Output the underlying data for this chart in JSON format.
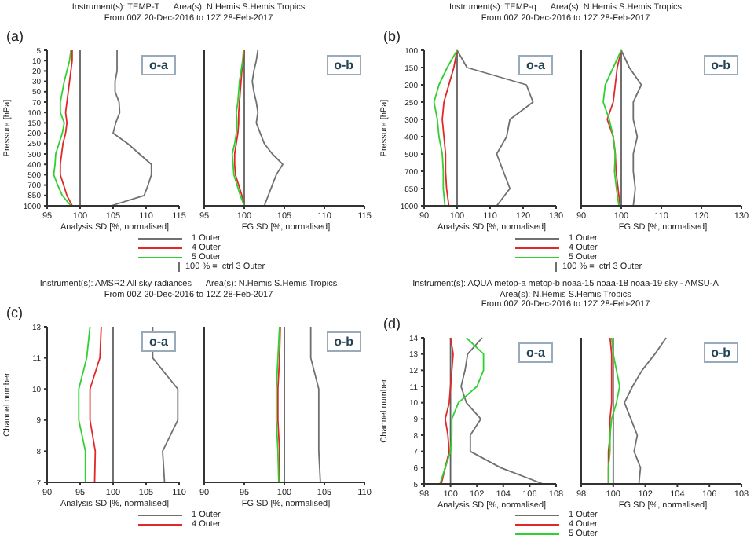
{
  "chart_data": [
    {
      "type": "line",
      "orientation": "horizontal",
      "title": "Instrument(s): TEMP-T      Area(s): N.Hemis S.Hemis Tropics\nFrom 00Z 20-Dec-2016 to 12Z 28-Feb-2017",
      "annotations": [
        "(a)",
        "o-a"
      ],
      "xlabel": "Analysis  SD [%, normalised]",
      "ylabel": "Pressure [hPa]",
      "legend": "bottom",
      "categories": [
        "5",
        "10",
        "20",
        "30",
        "50",
        "70",
        "100",
        "150",
        "200",
        "250",
        "300",
        "400",
        "500",
        "700",
        "850",
        "1000"
      ],
      "xlim": [
        95,
        115
      ],
      "xticks": [
        95,
        100,
        105,
        110,
        115
      ],
      "ref_lines": [
        {
          "axis": "x",
          "value": 100,
          "label": "100 % =  ctrl 3 Outer",
          "color": "#606060"
        }
      ],
      "series": [
        {
          "name": "1 Outer",
          "color": "#707070",
          "values": [
            105.6,
            105.6,
            105.6,
            105.3,
            105.3,
            105.9,
            106,
            105.4,
            105,
            107.2,
            109,
            110.8,
            110.8,
            110.3,
            109.7,
            104.7
          ]
        },
        {
          "name": "4 Outer",
          "color": "#e02828",
          "values": [
            98.8,
            98.8,
            98.6,
            98.4,
            98.2,
            98,
            97.8,
            98,
            97.8,
            97.4,
            97.2,
            97,
            97,
            97.5,
            98,
            98.8
          ]
        },
        {
          "name": "5 Outer",
          "color": "#30d030",
          "values": [
            98.6,
            98.4,
            98,
            97.6,
            97.3,
            97,
            97,
            97.6,
            97.3,
            96.8,
            96.3,
            96.2,
            96,
            96.6,
            97.3,
            98.6
          ]
        }
      ]
    },
    {
      "type": "line",
      "orientation": "horizontal",
      "annotations": [
        "o-b"
      ],
      "xlabel": "FG    SD [%, normalised]",
      "tick_labels": "x",
      "categories": [
        "5",
        "10",
        "20",
        "30",
        "50",
        "70",
        "100",
        "150",
        "200",
        "250",
        "300",
        "400",
        "500",
        "700",
        "850",
        "1000"
      ],
      "xlim": [
        95,
        115
      ],
      "xticks": [
        95,
        100,
        105,
        110,
        115
      ],
      "ref_lines": [
        {
          "axis": "x",
          "value": 100,
          "color": "#606060"
        }
      ],
      "series": [
        {
          "color": "#707070",
          "values": [
            101.7,
            101.5,
            101.2,
            101,
            101.2,
            101.5,
            101.7,
            101.5,
            102,
            102.5,
            103.5,
            104.8,
            104,
            103.5,
            103,
            102.5
          ]
        },
        {
          "color": "#e02828",
          "values": [
            100,
            99.9,
            99.7,
            99.6,
            99.5,
            99.4,
            99.3,
            99.3,
            99.2,
            99,
            98.8,
            98.8,
            98.9,
            99.3,
            99.7,
            100
          ]
        },
        {
          "color": "#30d030",
          "values": [
            99.9,
            99.8,
            99.6,
            99.4,
            99.3,
            99.2,
            99,
            99.1,
            99,
            98.8,
            98.5,
            98.6,
            98.7,
            99.1,
            99.5,
            100
          ]
        }
      ]
    },
    {
      "type": "line",
      "orientation": "horizontal",
      "title": "Instrument(s): TEMP-q      Area(s): N.Hemis S.Hemis Tropics\nFrom 00Z 20-Dec-2016 to 12Z 28-Feb-2017",
      "annotations": [
        "(b)",
        "o-a"
      ],
      "xlabel": "Analysis  SD [%, normalised]",
      "ylabel": "Pressure [hPa]",
      "legend": "bottom",
      "categories": [
        "100",
        "150",
        "200",
        "250",
        "300",
        "400",
        "500",
        "700",
        "850",
        "1000"
      ],
      "xlim": [
        90,
        130
      ],
      "xticks": [
        90,
        100,
        110,
        120,
        130
      ],
      "ref_lines": [
        {
          "axis": "x",
          "value": 100,
          "label": "100 % =  ctrl 3 Outer",
          "color": "#606060"
        }
      ],
      "series": [
        {
          "name": "1 Outer",
          "color": "#707070",
          "values": [
            100,
            103,
            121,
            123,
            116,
            115,
            112,
            114,
            116,
            112
          ]
        },
        {
          "name": "4 Outer",
          "color": "#e02828",
          "values": [
            100,
            99,
            97.5,
            96,
            95.5,
            96,
            96.5,
            96.5,
            96.8,
            97.5
          ]
        },
        {
          "name": "5 Outer",
          "color": "#30d030",
          "values": [
            100,
            97,
            94.5,
            93,
            94,
            94.5,
            95.5,
            95.8,
            95.8,
            96.3
          ]
        }
      ]
    },
    {
      "type": "line",
      "orientation": "horizontal",
      "annotations": [
        "o-b"
      ],
      "xlabel": "FG  SD [%, normalised]",
      "tick_labels": "x",
      "categories": [
        "100",
        "150",
        "200",
        "250",
        "300",
        "400",
        "500",
        "700",
        "850",
        "1000"
      ],
      "xlim": [
        90,
        130
      ],
      "xticks": [
        90,
        100,
        110,
        120,
        130
      ],
      "ref_lines": [
        {
          "axis": "x",
          "value": 100,
          "color": "#606060"
        }
      ],
      "series": [
        {
          "color": "#707070",
          "values": [
            100,
            102,
            105,
            103,
            103,
            104,
            103,
            103,
            103.5,
            103
          ]
        },
        {
          "color": "#e02828",
          "values": [
            100,
            99,
            98.5,
            98,
            96.5,
            98,
            98.5,
            98.7,
            99.2,
            99.7
          ]
        },
        {
          "color": "#30d030",
          "values": [
            100,
            98,
            96,
            95.5,
            97,
            98,
            98.5,
            98.3,
            98.8,
            99.4
          ]
        }
      ]
    },
    {
      "type": "line",
      "orientation": "horizontal",
      "title": "Instrument(s): AMSR2 All sky radiances      Area(s): N.Hemis S.Hemis Tropics\nFrom 00Z 20-Dec-2016 to 12Z 28-Feb-2017",
      "annotations": [
        "(c)",
        "o-a"
      ],
      "xlabel": "Analysis  SD [%, normalised]",
      "ylabel": "Channel number",
      "legend": "bottom",
      "categories": [
        "13",
        "11",
        "10",
        "9",
        "8",
        "7"
      ],
      "xlim": [
        90,
        110
      ],
      "xticks": [
        90,
        95,
        100,
        105,
        110
      ],
      "ref_lines": [
        {
          "axis": "x",
          "value": 100,
          "color": "#606060"
        }
      ],
      "series": [
        {
          "name": "1 Outer",
          "color": "#707070",
          "values": [
            106,
            106,
            109.8,
            109.8,
            107.5,
            107.8
          ]
        },
        {
          "name": "4 Outer",
          "color": "#e02828",
          "values": [
            98.2,
            98,
            96.5,
            96.5,
            97.3,
            97.2
          ]
        },
        {
          "color": "#30d030",
          "values": [
            96.5,
            96,
            94.8,
            94.8,
            95.8,
            95.8
          ]
        }
      ]
    },
    {
      "type": "line",
      "orientation": "horizontal",
      "annotations": [
        "o-b"
      ],
      "xlabel": "FG  SD [%, normalised]",
      "tick_labels": "x",
      "categories": [
        "13",
        "11",
        "10",
        "9",
        "8",
        "7"
      ],
      "xlim": [
        90,
        110
      ],
      "xticks": [
        90,
        95,
        100,
        105,
        110
      ],
      "ref_lines": [
        {
          "axis": "x",
          "value": 100,
          "color": "#606060"
        }
      ],
      "series": [
        {
          "color": "#707070",
          "values": [
            103.3,
            103.3,
            104.3,
            104.3,
            104.3,
            104.5
          ]
        },
        {
          "color": "#e02828",
          "values": [
            99.5,
            99.4,
            99.2,
            99.2,
            99.4,
            99.4
          ]
        },
        {
          "color": "#30d030",
          "values": [
            99.4,
            99.2,
            99,
            99,
            99.2,
            99.3
          ]
        }
      ]
    },
    {
      "type": "line",
      "orientation": "horizontal",
      "title": "Instrument(s): AQUA metop-a metop-b noaa-15 noaa-18 noaa-19 sky - AMSU-A\nArea(s): N.Hemis S.Hemis Tropics\nFrom 00Z 20-Dec-2016 to 12Z 28-Feb-2017",
      "annotations": [
        "(d)",
        "o-a"
      ],
      "xlabel": "Analysis  SD [%, normalised]",
      "ylabel": "Channel number",
      "legend": "bottom",
      "categories": [
        "14",
        "13",
        "12",
        "11",
        "10",
        "9",
        "8",
        "7",
        "6",
        "5"
      ],
      "xlim": [
        98,
        108
      ],
      "xticks": [
        98,
        100,
        102,
        104,
        106,
        108
      ],
      "ref_lines": [
        {
          "axis": "x",
          "value": 100,
          "color": "#606060"
        }
      ],
      "series": [
        {
          "name": "1 Outer",
          "color": "#707070",
          "values": [
            102.4,
            101.3,
            101.1,
            100.8,
            101.2,
            102.3,
            101.5,
            101.5,
            103.8,
            107
          ]
        },
        {
          "name": "4 Outer",
          "color": "#e02828",
          "values": [
            100,
            100.2,
            100.1,
            100,
            99.9,
            99.6,
            99.8,
            99.9,
            99.6,
            99.3
          ]
        },
        {
          "name": "5 Outer",
          "color": "#30d030",
          "values": [
            101.2,
            102.5,
            102.5,
            102,
            100.6,
            100.1,
            100.1,
            100,
            99.6,
            99.2
          ]
        }
      ]
    },
    {
      "type": "line",
      "orientation": "horizontal",
      "annotations": [
        "o-b"
      ],
      "xlabel": "FG  SD [%, normalised]",
      "tick_labels": "x",
      "categories": [
        "14",
        "13",
        "12",
        "11",
        "10",
        "9",
        "8",
        "7",
        "6",
        "5"
      ],
      "xlim": [
        98,
        108
      ],
      "xticks": [
        98,
        100,
        102,
        104,
        106,
        108
      ],
      "ref_lines": [
        {
          "axis": "x",
          "value": 100,
          "color": "#606060"
        }
      ],
      "series": [
        {
          "color": "#707070",
          "values": [
            103.3,
            102.6,
            101.8,
            101.2,
            100.7,
            101.1,
            101.5,
            101.3,
            101.7,
            101.6
          ]
        },
        {
          "color": "#e02828",
          "values": [
            99.8,
            99.9,
            99.9,
            99.9,
            99.9,
            99.8,
            99.8,
            99.7,
            99.7,
            99.7
          ]
        },
        {
          "color": "#30d030",
          "values": [
            99.9,
            100,
            100.2,
            100.4,
            100.2,
            99.9,
            99.8,
            99.8,
            99.7,
            99.7
          ]
        }
      ]
    }
  ]
}
